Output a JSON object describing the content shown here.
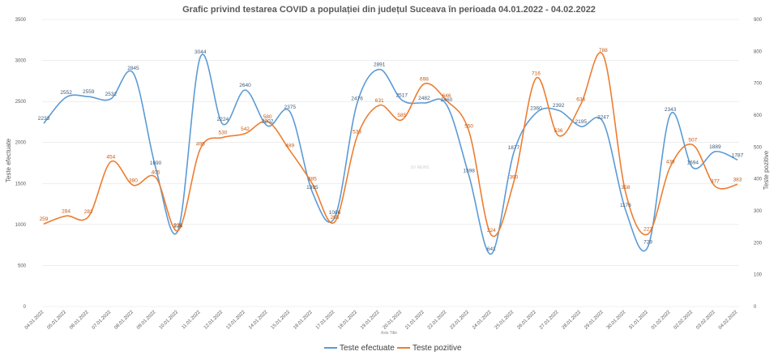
{
  "chart_data": {
    "type": "line",
    "title": "Grafic privind testarea COVID a populației din județul Suceava în perioada 04.01.2022  - 04.02.2022",
    "xlabel": "Axis Title",
    "ylabel": "Teste efectuate",
    "y2label": "Teste pozitive",
    "watermark": "SV NEWS",
    "ylim": [
      0,
      3500
    ],
    "y2lim": [
      0,
      900
    ],
    "yticks": [
      0,
      500,
      1000,
      1500,
      2000,
      2500,
      3000,
      3500
    ],
    "y2ticks": [
      0,
      100,
      200,
      300,
      400,
      500,
      600,
      700,
      800,
      900
    ],
    "categories": [
      "04.01.2022",
      "05.01.2022",
      "06.01.2022",
      "07.01.2022",
      "08.01.2022",
      "09.01.2022",
      "10.01.2022",
      "11.01.2022",
      "12.01.2022",
      "13.01.2022",
      "14.01.2022",
      "15.01.2022",
      "16.01.2022",
      "17.01.2022",
      "18.01.2022",
      "19.01.2022",
      "20.01.2022",
      "21.01.2022",
      "22.01.2022",
      "23.01.2022",
      "24.01.2022",
      "25.01.2022",
      "26.01.2022",
      "27.01.2022",
      "28.01.2022",
      "29.01.2022",
      "30.01.2022",
      "31.01.2022",
      "01.02.2022",
      "02.02.2022",
      "03.02.2022",
      "04.02.2022"
    ],
    "series": [
      {
        "name": "Teste efectuate",
        "axis": "left",
        "color": "#5B9BD5",
        "values": [
          2233,
          2552,
          2559,
          2532,
          2845,
          1690,
          928,
          3044,
          2224,
          2640,
          2202,
          2375,
          1395,
          1086,
          2476,
          2891,
          2517,
          2482,
          2460,
          1598,
          641,
          1877,
          2360,
          2392,
          2195,
          2247,
          1176,
          729,
          2343,
          1694,
          1889,
          1787
        ]
      },
      {
        "name": "Teste pozitive",
        "axis": "right",
        "color": "#ED7D31",
        "values": [
          259,
          284,
          282,
          454,
          380,
          405,
          238,
          495,
          530,
          542,
          580,
          489,
          385,
          265,
          533,
          631,
          585,
          698,
          646,
          550,
          224,
          390,
          716,
          536,
          634,
          788,
          358,
          227,
          439,
          507,
          377,
          383
        ]
      }
    ],
    "legend": "bottom",
    "grid": true
  }
}
